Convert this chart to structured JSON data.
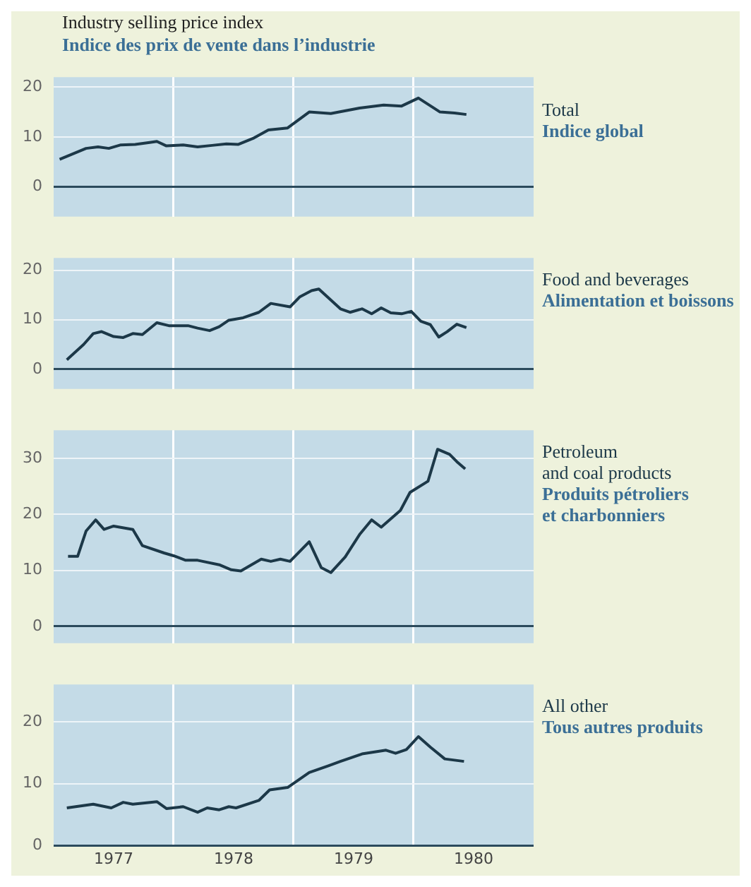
{
  "chart_data": [
    {
      "type": "line",
      "title": "Industry selling price index",
      "subtitle": "Indice des prix de vente dans l’industrie",
      "annotations": [
        "Indice global"
      ],
      "xlim": [
        1977,
        1981
      ],
      "xticks": [
        {
          "value": 1978,
          "label": null
        },
        {
          "value": 1979,
          "label": null
        },
        {
          "value": 1980,
          "label": null
        }
      ],
      "ylim": [
        -6,
        22
      ],
      "yticks": [
        0,
        10,
        20
      ],
      "grid": true,
      "tick_labels": "y",
      "marker": "none",
      "line_style": "solid",
      "series": [
        {
          "name": "Total",
          "color": "#1c3848",
          "x": [
            1977.05,
            1977.27,
            1977.37,
            1977.46,
            1977.56,
            1977.68,
            1977.8,
            1977.86,
            1977.94,
            1978.08,
            1978.2,
            1978.32,
            1978.44,
            1978.54,
            1978.67,
            1978.79,
            1978.95,
            1979.13,
            1979.31,
            1979.55,
            1979.75,
            1979.9,
            1980.04,
            1980.22,
            1980.34,
            1980.44
          ],
          "values": [
            5.5,
            7.7,
            8.0,
            7.7,
            8.4,
            8.5,
            8.9,
            9.1,
            8.2,
            8.4,
            8.0,
            8.3,
            8.6,
            8.5,
            9.8,
            11.4,
            11.8,
            15.0,
            14.7,
            15.8,
            16.4,
            16.2,
            17.8,
            15.0,
            14.8,
            14.5
          ]
        }
      ]
    },
    {
      "type": "line",
      "annotations": [
        "Alimentation et boissons"
      ],
      "xlim": [
        1977,
        1981
      ],
      "xticks": [
        {
          "value": 1978,
          "label": null
        },
        {
          "value": 1979,
          "label": null
        },
        {
          "value": 1980,
          "label": null
        }
      ],
      "ylim": [
        -4,
        22.5
      ],
      "yticks": [
        0,
        10,
        20
      ],
      "grid": true,
      "tick_labels": "y",
      "marker": "none",
      "line_style": "solid",
      "series": [
        {
          "name": "Food and beverages",
          "color": "#1c3848",
          "x": [
            1977.11,
            1977.25,
            1977.33,
            1977.4,
            1977.5,
            1977.58,
            1977.66,
            1977.74,
            1977.86,
            1977.96,
            1978.12,
            1978.2,
            1978.3,
            1978.38,
            1978.46,
            1978.58,
            1978.71,
            1978.81,
            1978.97,
            1979.05,
            1979.15,
            1979.21,
            1979.39,
            1979.47,
            1979.57,
            1979.65,
            1979.73,
            1979.81,
            1979.9,
            1979.98,
            1980.06,
            1980.14,
            1980.21,
            1980.28,
            1980.36,
            1980.44
          ],
          "values": [
            1.9,
            5.0,
            7.2,
            7.6,
            6.6,
            6.4,
            7.2,
            7.0,
            9.4,
            8.8,
            8.8,
            8.3,
            7.8,
            8.6,
            9.9,
            10.4,
            11.5,
            13.3,
            12.6,
            14.6,
            15.9,
            16.2,
            12.2,
            11.5,
            12.2,
            11.2,
            12.4,
            11.4,
            11.2,
            11.7,
            9.7,
            9.0,
            6.5,
            7.6,
            9.1,
            8.4
          ]
        }
      ]
    },
    {
      "type": "line",
      "annotations": [
        "Produits pétroliers\net charbonniers"
      ],
      "xlim": [
        1977,
        1981
      ],
      "xticks": [
        {
          "value": 1978,
          "label": null
        },
        {
          "value": 1979,
          "label": null
        },
        {
          "value": 1980,
          "label": null
        }
      ],
      "ylim": [
        -3,
        35
      ],
      "yticks": [
        0,
        10,
        20,
        30
      ],
      "grid": true,
      "tick_labels": "y",
      "marker": "none",
      "line_style": "solid",
      "series": [
        {
          "name": "Petroleum\nand coal products",
          "color": "#1c3848",
          "x": [
            1977.12,
            1977.2,
            1977.27,
            1977.35,
            1977.42,
            1977.5,
            1977.66,
            1977.74,
            1977.92,
            1978.0,
            1978.1,
            1978.2,
            1978.38,
            1978.48,
            1978.56,
            1978.73,
            1978.81,
            1978.89,
            1978.97,
            1979.13,
            1979.23,
            1979.31,
            1979.43,
            1979.55,
            1979.65,
            1979.73,
            1979.89,
            1979.97,
            1980.12,
            1980.2,
            1980.3,
            1980.36,
            1980.43
          ],
          "values": [
            12.5,
            12.5,
            17.0,
            19.0,
            17.3,
            17.9,
            17.3,
            14.4,
            13.1,
            12.6,
            11.8,
            11.8,
            11.0,
            10.1,
            9.9,
            12.0,
            11.6,
            12.0,
            11.6,
            15.1,
            10.5,
            9.6,
            12.4,
            16.4,
            19.0,
            17.7,
            20.7,
            23.9,
            25.9,
            31.6,
            30.7,
            29.4,
            28.1
          ]
        }
      ]
    },
    {
      "type": "line",
      "annotations": [
        "Tous autres produits"
      ],
      "xlim": [
        1977,
        1981
      ],
      "xticks": [
        {
          "value": 1977.5,
          "label": "1977"
        },
        {
          "value": 1978,
          "label": null
        },
        {
          "value": 1978.5,
          "label": "1978"
        },
        {
          "value": 1979,
          "label": null
        },
        {
          "value": 1979.5,
          "label": "1979"
        },
        {
          "value": 1980,
          "label": null
        },
        {
          "value": 1980.5,
          "label": "1980"
        }
      ],
      "ylim": [
        0,
        26
      ],
      "yticks": [
        0,
        10,
        20
      ],
      "grid": true,
      "marker": "none",
      "line_style": "solid",
      "series": [
        {
          "name": "All other",
          "color": "#1c3848",
          "x": [
            1977.11,
            1977.33,
            1977.48,
            1977.58,
            1977.66,
            1977.86,
            1977.94,
            1978.08,
            1978.2,
            1978.28,
            1978.38,
            1978.46,
            1978.52,
            1978.71,
            1978.8,
            1978.95,
            1979.13,
            1979.29,
            1979.39,
            1979.57,
            1979.77,
            1979.85,
            1979.94,
            1980.04,
            1980.14,
            1980.26,
            1980.42
          ],
          "values": [
            6.1,
            6.7,
            6.1,
            7.0,
            6.7,
            7.1,
            6.0,
            6.3,
            5.4,
            6.1,
            5.8,
            6.3,
            6.1,
            7.3,
            9.0,
            9.4,
            11.8,
            12.9,
            13.6,
            14.8,
            15.4,
            14.9,
            15.5,
            17.6,
            15.9,
            14.0,
            13.6
          ]
        }
      ]
    }
  ]
}
